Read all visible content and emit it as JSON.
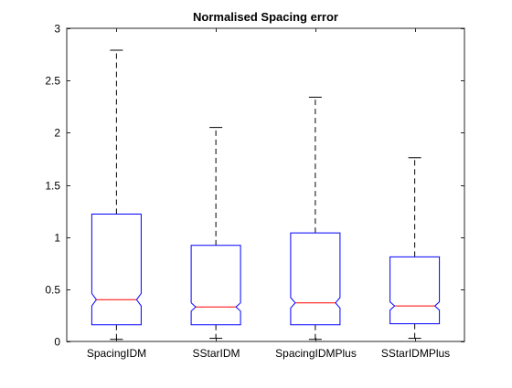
{
  "chart_data": {
    "type": "boxplot",
    "title": "Normalised Spacing error",
    "xlabel": "",
    "ylabel": "",
    "ylim": [
      0,
      3
    ],
    "yticks": [
      0,
      0.5,
      1,
      1.5,
      2,
      2.5,
      3
    ],
    "ytick_labels": [
      "0",
      "0.5",
      "1",
      "1.5",
      "2",
      "2.5",
      "3"
    ],
    "notched": true,
    "grid": false,
    "colors": {
      "box": "#0000ff",
      "median": "#ff0000",
      "whisker": "#000000",
      "axes": "#262626",
      "text": "#000000"
    },
    "categories": [
      "SpacingIDM",
      "SStarIDM",
      "SpacingIDMPlus",
      "SStarIDMPlus"
    ],
    "boxes": [
      {
        "name": "SpacingIDM",
        "whisker_low": 0.02,
        "q1": 0.16,
        "median": 0.4,
        "q3": 1.22,
        "whisker_high": 2.79,
        "notch_low": 0.34,
        "notch_high": 0.46
      },
      {
        "name": "SStarIDM",
        "whisker_low": 0.03,
        "q1": 0.16,
        "median": 0.33,
        "q3": 0.92,
        "whisker_high": 2.05,
        "notch_low": 0.29,
        "notch_high": 0.37
      },
      {
        "name": "SpacingIDMPlus",
        "whisker_low": 0.02,
        "q1": 0.16,
        "median": 0.37,
        "q3": 1.04,
        "whisker_high": 2.34,
        "notch_low": 0.32,
        "notch_high": 0.42
      },
      {
        "name": "SStarIDMPlus",
        "whisker_low": 0.03,
        "q1": 0.17,
        "median": 0.34,
        "q3": 0.81,
        "whisker_high": 1.76,
        "notch_low": 0.3,
        "notch_high": 0.38
      }
    ]
  }
}
